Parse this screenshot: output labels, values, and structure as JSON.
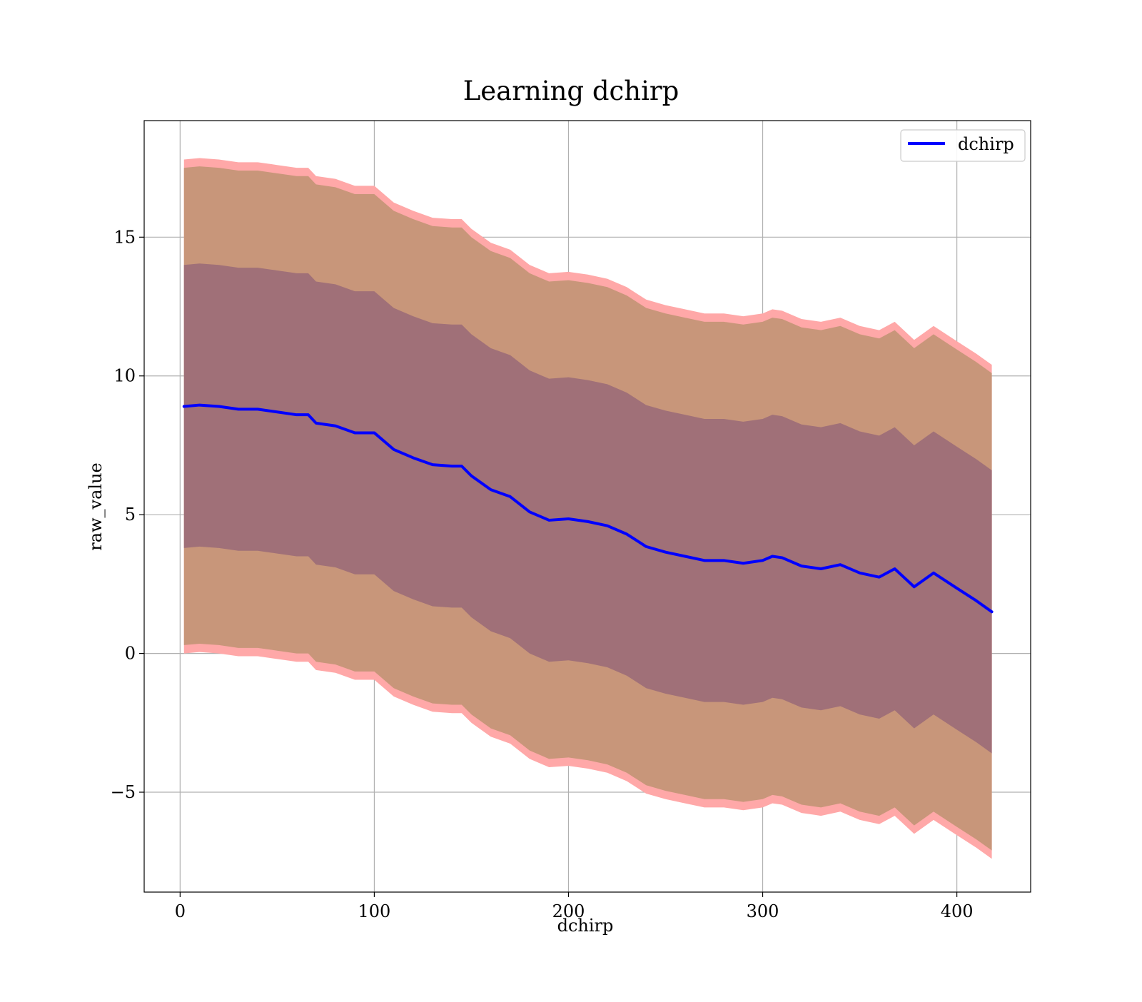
{
  "chart_data": {
    "type": "line",
    "title": "Learning dchirp",
    "xlabel": "dchirp",
    "ylabel": "raw_value",
    "xlim": [
      -18.5,
      438
    ],
    "ylim": [
      -8.6,
      19.2
    ],
    "xticks": [
      0,
      100,
      200,
      300,
      400
    ],
    "xtick_labels": [
      "0",
      "100",
      "200",
      "300",
      "400"
    ],
    "yticks": [
      -5,
      0,
      5,
      10,
      15
    ],
    "ytick_labels": [
      "−5",
      "0",
      "5",
      "10",
      "15"
    ],
    "grid": true,
    "legend": {
      "placement": "top-right",
      "entries": [
        "dchirp"
      ]
    },
    "colors": {
      "line": "#0000ff",
      "band_outer": "#ffa8a8",
      "band_middle": "#c8967a",
      "band_inner": "#a07078",
      "grid": "#b0b0b0"
    },
    "series": [
      {
        "name": "dchirp",
        "x": [
          2,
          10,
          20,
          30,
          40,
          50,
          60,
          66,
          70,
          80,
          90,
          100,
          110,
          120,
          130,
          140,
          145,
          150,
          160,
          170,
          180,
          190,
          200,
          210,
          220,
          230,
          240,
          250,
          260,
          270,
          280,
          290,
          300,
          305,
          310,
          320,
          330,
          340,
          350,
          360,
          368,
          378,
          388,
          400,
          410,
          418
        ],
        "y": [
          8.9,
          8.95,
          8.9,
          8.8,
          8.8,
          8.7,
          8.6,
          8.6,
          8.3,
          8.2,
          7.95,
          7.95,
          7.35,
          7.05,
          6.8,
          6.75,
          6.75,
          6.4,
          5.9,
          5.65,
          5.1,
          4.8,
          4.85,
          4.75,
          4.6,
          4.3,
          3.85,
          3.65,
          3.5,
          3.35,
          3.35,
          3.25,
          3.35,
          3.5,
          3.45,
          3.15,
          3.05,
          3.2,
          2.9,
          2.75,
          3.05,
          2.4,
          2.9,
          2.35,
          1.9,
          1.5
        ],
        "band_inner_halfwidth": 5.1,
        "band_middle_halfwidth": 8.6,
        "band_outer_halfwidth": 8.9
      }
    ]
  }
}
